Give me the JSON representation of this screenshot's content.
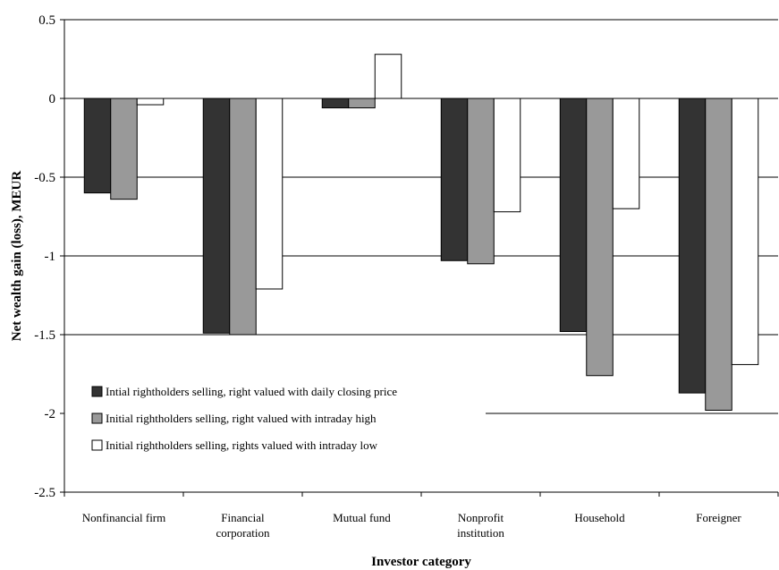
{
  "chart_data": {
    "type": "bar",
    "title": "",
    "xlabel": "Investor category",
    "ylabel": "Net wealth gain (loss), MEUR",
    "ylim": [
      -2.5,
      0.5
    ],
    "yticks": [
      "0.5",
      "0",
      "-0.5",
      "-1",
      "-1.5",
      "-2",
      "-2.5"
    ],
    "ytick_values": [
      0.5,
      0,
      -0.5,
      -1,
      -1.5,
      -2,
      -2.5
    ],
    "categories": [
      [
        "Nonfinancial firm"
      ],
      [
        "Financial",
        "corporation"
      ],
      [
        "Mutual fund"
      ],
      [
        "Nonprofit",
        "institution"
      ],
      [
        "Household"
      ],
      [
        "Foreigner"
      ]
    ],
    "series": [
      {
        "name": "Intial rightholders selling, right valued with daily closing price",
        "color": "#333333",
        "values": [
          -0.6,
          -1.49,
          -0.06,
          -1.03,
          -1.48,
          -1.87
        ]
      },
      {
        "name": "Initial rightholders selling, right valued with intraday high",
        "color": "#999999",
        "values": [
          -0.64,
          -1.5,
          -0.06,
          -1.05,
          -1.76,
          -1.98
        ]
      },
      {
        "name": "Initial rightholders selling, rights valued with intraday low",
        "color": "#ffffff",
        "values": [
          -0.04,
          -1.21,
          0.28,
          -0.72,
          -0.7,
          -1.69
        ]
      }
    ],
    "grid": true,
    "legend_position": "bottom-left"
  }
}
